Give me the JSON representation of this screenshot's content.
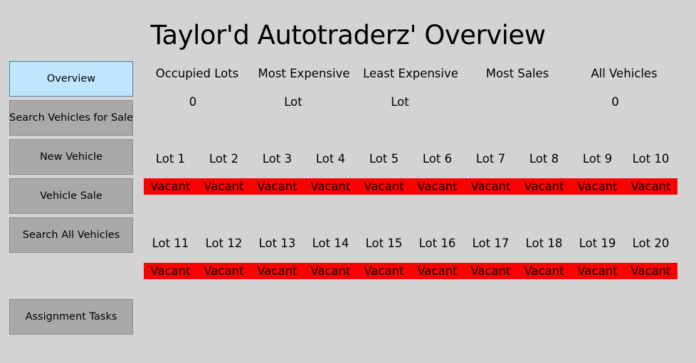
{
  "title": "Taylor'd Autotraderz' Overview",
  "nav": {
    "overview": "Overview",
    "search_sale": "Search Vehicles for Sale",
    "new_vehicle": "New Vehicle",
    "vehicle_sale": "Vehicle Sale",
    "search_all": "Search All Vehicles",
    "assignment": "Assignment Tasks"
  },
  "stats": {
    "occupied_label": "Occupied Lots",
    "occupied_value": "0",
    "most_exp_label": "Most Expensive",
    "most_exp_value": "Lot",
    "least_exp_label": "Least Expensive",
    "least_exp_value": "Lot",
    "most_sales_label": "Most Sales",
    "most_sales_value": "",
    "all_vehicles_label": "All Vehicles",
    "all_vehicles_value": "0"
  },
  "lots": [
    {
      "label": "Lot 1",
      "status": "Vacant"
    },
    {
      "label": "Lot 2",
      "status": "Vacant"
    },
    {
      "label": "Lot 3",
      "status": "Vacant"
    },
    {
      "label": "Lot 4",
      "status": "Vacant"
    },
    {
      "label": "Lot 5",
      "status": "Vacant"
    },
    {
      "label": "Lot 6",
      "status": "Vacant"
    },
    {
      "label": "Lot 7",
      "status": "Vacant"
    },
    {
      "label": "Lot 8",
      "status": "Vacant"
    },
    {
      "label": "Lot 9",
      "status": "Vacant"
    },
    {
      "label": "Lot 10",
      "status": "Vacant"
    },
    {
      "label": "Lot 11",
      "status": "Vacant"
    },
    {
      "label": "Lot 12",
      "status": "Vacant"
    },
    {
      "label": "Lot 13",
      "status": "Vacant"
    },
    {
      "label": "Lot 14",
      "status": "Vacant"
    },
    {
      "label": "Lot 15",
      "status": "Vacant"
    },
    {
      "label": "Lot 16",
      "status": "Vacant"
    },
    {
      "label": "Lot 17",
      "status": "Vacant"
    },
    {
      "label": "Lot 18",
      "status": "Vacant"
    },
    {
      "label": "Lot 19",
      "status": "Vacant"
    },
    {
      "label": "Lot 20",
      "status": "Vacant"
    }
  ],
  "colors": {
    "background": "#d3d3d3",
    "button": "#a9a9a9",
    "active_button": "#bfe6fd",
    "vacant": "#ff0000"
  }
}
